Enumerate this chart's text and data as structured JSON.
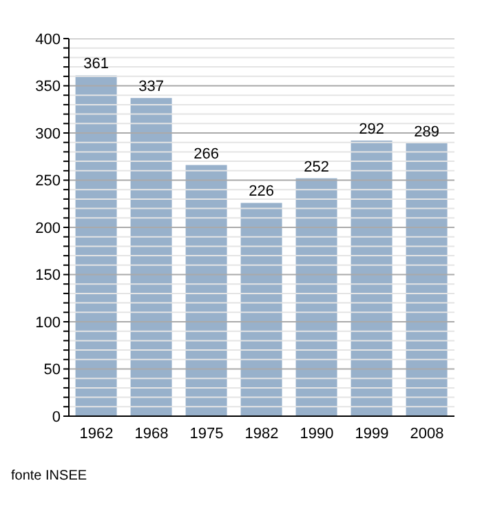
{
  "chart_data": {
    "type": "bar",
    "categories": [
      "1962",
      "1968",
      "1975",
      "1982",
      "1990",
      "1999",
      "2008"
    ],
    "values": [
      361,
      337,
      266,
      226,
      252,
      292,
      289
    ],
    "color": "#98b1cb",
    "data_labels": true,
    "ylim": [
      0,
      400
    ],
    "yticks": [
      0,
      {
        "value": 10,
        "label": null
      },
      {
        "value": 20,
        "label": null
      },
      {
        "value": 30,
        "label": null
      },
      {
        "value": 40,
        "label": null
      },
      50,
      {
        "value": 60,
        "label": null
      },
      {
        "value": 70,
        "label": null
      },
      {
        "value": 80,
        "label": null
      },
      {
        "value": 90,
        "label": null
      },
      100,
      {
        "value": 110,
        "label": null
      },
      {
        "value": 120,
        "label": null
      },
      {
        "value": 130,
        "label": null
      },
      {
        "value": 140,
        "label": null
      },
      150,
      {
        "value": 160,
        "label": null
      },
      {
        "value": 170,
        "label": null
      },
      {
        "value": 180,
        "label": null
      },
      {
        "value": 190,
        "label": null
      },
      200,
      {
        "value": 210,
        "label": null
      },
      {
        "value": 220,
        "label": null
      },
      {
        "value": 230,
        "label": null
      },
      {
        "value": 240,
        "label": null
      },
      250,
      {
        "value": 260,
        "label": null
      },
      {
        "value": 270,
        "label": null
      },
      {
        "value": 280,
        "label": null
      },
      {
        "value": 290,
        "label": null
      },
      300,
      {
        "value": 310,
        "label": null
      },
      {
        "value": 320,
        "label": null
      },
      {
        "value": 330,
        "label": null
      },
      {
        "value": 340,
        "label": null
      },
      350,
      {
        "value": 360,
        "label": null
      },
      {
        "value": 370,
        "label": null
      },
      {
        "value": 380,
        "label": null
      },
      {
        "value": 390,
        "label": null
      },
      400
    ],
    "grid": "y",
    "annotations": [
      "fonte INSEE"
    ]
  }
}
